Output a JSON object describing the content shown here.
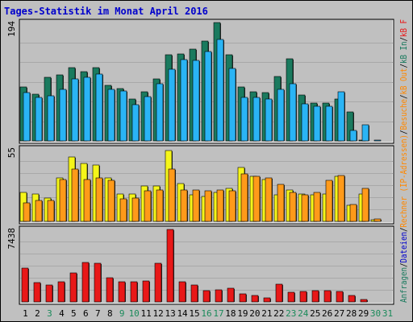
{
  "chart_data": {
    "type": "bar",
    "title": "Tages-Statistik im Monat April 2016",
    "categories": [
      "1",
      "2",
      "3",
      "4",
      "5",
      "6",
      "7",
      "8",
      "9",
      "10",
      "11",
      "12",
      "13",
      "14",
      "15",
      "16",
      "17",
      "18",
      "19",
      "20",
      "21",
      "22",
      "23",
      "24",
      "25",
      "26",
      "27",
      "28",
      "29",
      "30",
      "31"
    ],
    "weekend_days": [
      "3",
      "9",
      "10",
      "16",
      "17",
      "23",
      "24",
      "30",
      "31"
    ],
    "panels": [
      {
        "id": "requests",
        "ymax_label": "194",
        "ymax": 194,
        "series": [
          {
            "name": "Anfragen",
            "color": "#1a7a5e",
            "values": [
              88,
              77,
              104,
              108,
              120,
              113,
              120,
              91,
              86,
              69,
              80,
              101,
              141,
              143,
              150,
              164,
              194,
              141,
              89,
              81,
              79,
              106,
              135,
              75,
              62,
              62,
              68,
              47,
              1,
              0,
              0
            ]
          },
          {
            "name": "Dateien",
            "color": "#2ab4f5",
            "values": [
              79,
              71,
              74,
              85,
              101,
              104,
              109,
              84,
              82,
              59,
              73,
              94,
              117,
              133,
              132,
              146,
              166,
              119,
              71,
              71,
              69,
              84,
              94,
              61,
              57,
              57,
              80,
              17,
              27,
              1,
              0
            ]
          }
        ]
      },
      {
        "id": "hosts",
        "ymax_label": "55",
        "ymax": 55,
        "series": [
          {
            "name": "Rechner (IP-Adressen)",
            "color": "#f5f51a",
            "values": [
              22,
              21,
              18,
              33,
              49,
              44,
              43,
              33,
              21,
              21,
              27,
              27,
              54,
              29,
              20,
              19,
              22,
              25,
              41,
              34,
              32,
              20,
              24,
              21,
              20,
              21,
              34,
              12,
              21,
              1,
              0
            ]
          },
          {
            "name": "Besuche",
            "color": "#ff9a1a",
            "values": [
              14,
              16,
              16,
              32,
              40,
              32,
              33,
              31,
              17,
              18,
              23,
              24,
              40,
              24,
              24,
              23,
              24,
              23,
              36,
              34,
              33,
              28,
              22,
              20,
              22,
              31,
              35,
              13,
              25,
              2,
              0
            ]
          }
        ]
      },
      {
        "id": "kbytes",
        "ymax_label": "7438",
        "ymax": 7438,
        "series": [
          {
            "name": "kB F",
            "color": "#e81818",
            "values": [
              3510,
              2020,
              1710,
              2100,
              2990,
              4090,
              3970,
              2500,
              2040,
              2080,
              2150,
              3980,
              7438,
              2070,
              1770,
              1160,
              1260,
              1390,
              800,
              690,
              410,
              1830,
              1020,
              1040,
              1130,
              1120,
              1070,
              690,
              210,
              0,
              0
            ]
          }
        ]
      }
    ],
    "right_axis_labels": [
      {
        "text": "Anfragen",
        "color": "#1a7a5e"
      },
      {
        "text": "/",
        "color": "#000000"
      },
      {
        "text": "Dateien",
        "color": "#0000cc"
      },
      {
        "text": "/",
        "color": "#000000"
      },
      {
        "text": "Rechner (IP-Adressen)",
        "color": "#ff8800"
      },
      {
        "text": "/",
        "color": "#000000"
      },
      {
        "text": "Besuche",
        "color": "#ff8800"
      },
      {
        "text": "/",
        "color": "#000000"
      },
      {
        "text": "kB Out",
        "color": "#ff8800"
      },
      {
        "text": "/",
        "color": "#000000"
      },
      {
        "text": "kB In",
        "color": "#1a7a5e"
      },
      {
        "text": "/",
        "color": "#000000"
      },
      {
        "text": "kB F",
        "color": "#e81818"
      }
    ],
    "title_color": "#0000cc",
    "weekday_color": "#000000",
    "weekend_color": "#1a8a5a",
    "grid": true
  }
}
